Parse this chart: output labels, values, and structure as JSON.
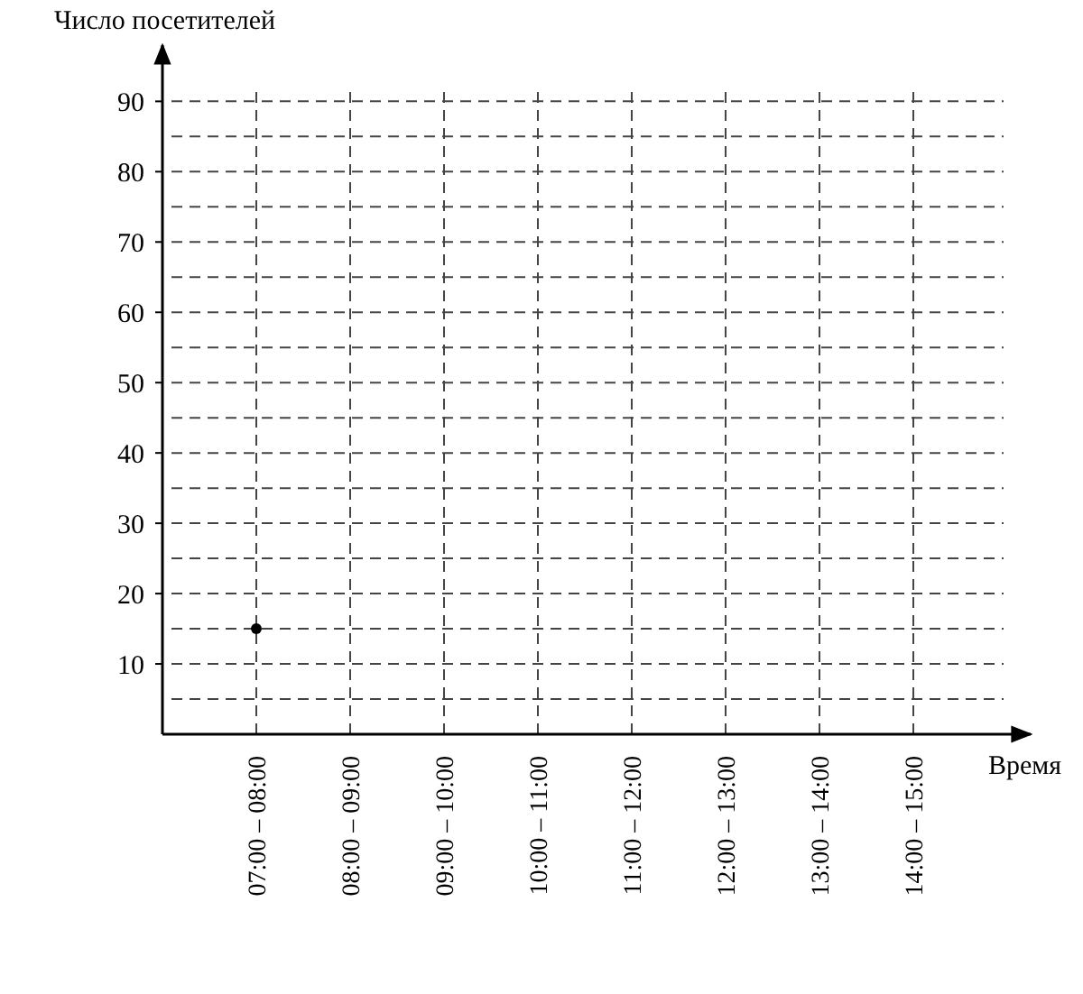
{
  "chart_data": {
    "type": "scatter",
    "xlabel": "Время",
    "ylabel": "Число посетителей",
    "categories": [
      "07:00 – 08:00",
      "08:00 – 09:00",
      "09:00 – 10:00",
      "10:00 – 11:00",
      "11:00 – 12:00",
      "12:00 – 13:00",
      "13:00 – 14:00",
      "14:00 – 15:00"
    ],
    "values": [
      15,
      null,
      null,
      null,
      null,
      null,
      null,
      null
    ],
    "color": "#000000",
    "marker": "circle",
    "ylim": [
      0,
      98
    ],
    "yticks": [
      {
        "value": 5,
        "label": null
      },
      10,
      {
        "value": 15,
        "label": null
      },
      20,
      {
        "value": 25,
        "label": null
      },
      30,
      {
        "value": 35,
        "label": null
      },
      40,
      {
        "value": 45,
        "label": null
      },
      50,
      {
        "value": 55,
        "label": null
      },
      60,
      {
        "value": 65,
        "label": null
      },
      70,
      {
        "value": 75,
        "label": null
      },
      80,
      {
        "value": 85,
        "label": null
      },
      90
    ],
    "grid": true
  }
}
